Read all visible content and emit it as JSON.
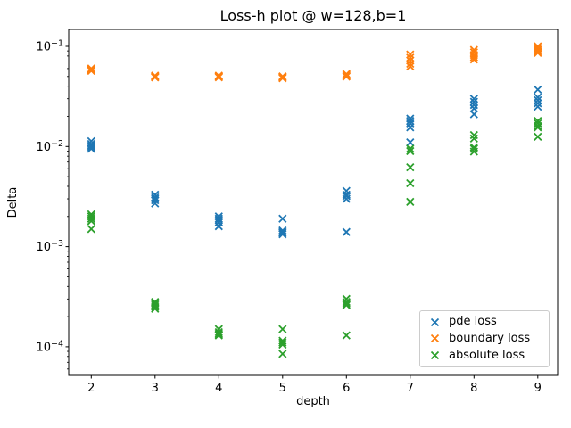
{
  "chart_data": {
    "type": "scatter",
    "title": "Loss-h plot @ w=128,b=1",
    "xlabel": "depth",
    "ylabel": "Delta",
    "x_scale": "linear",
    "y_scale": "log",
    "xlim": [
      1.65,
      9.3
    ],
    "ylim": [
      5.2e-05,
      0.148
    ],
    "grid": false,
    "marker": "x",
    "legend": {
      "position": "lower right"
    },
    "depths": [
      2,
      3,
      4,
      5,
      6,
      7,
      8,
      9
    ],
    "x_ticks": [
      "2",
      "3",
      "4",
      "5",
      "6",
      "7",
      "8",
      "9"
    ],
    "y_ticks": [
      {
        "base": "10",
        "exponent": "−1",
        "value": 0.1
      },
      {
        "base": "10",
        "exponent": "−2",
        "value": 0.01
      },
      {
        "base": "10",
        "exponent": "−3",
        "value": 0.001
      },
      {
        "base": "10",
        "exponent": "−4",
        "value": 0.0001
      }
    ],
    "series": [
      {
        "name": "pde loss",
        "color": "#1f77b4",
        "values_by_depth": [
          [
            0.0113,
            0.0106,
            0.0102,
            0.0099,
            0.0095
          ],
          [
            0.0033,
            0.0031,
            0.003,
            0.0029,
            0.0027
          ],
          [
            0.002,
            0.0019,
            0.00185,
            0.00175,
            0.0016
          ],
          [
            0.0019,
            0.00145,
            0.0014,
            0.00137,
            0.00133
          ],
          [
            0.0036,
            0.0033,
            0.0032,
            0.003,
            0.0014
          ],
          [
            0.019,
            0.018,
            0.017,
            0.0155,
            0.011
          ],
          [
            0.03,
            0.028,
            0.026,
            0.024,
            0.021
          ],
          [
            0.037,
            0.031,
            0.029,
            0.027,
            0.025
          ]
        ]
      },
      {
        "name": "boundary loss",
        "color": "#ff7f0e",
        "values_by_depth": [
          [
            0.06,
            0.059,
            0.058,
            0.057,
            0.057
          ],
          [
            0.051,
            0.05,
            0.05,
            0.049,
            0.049
          ],
          [
            0.051,
            0.05,
            0.05,
            0.05,
            0.049
          ],
          [
            0.05,
            0.05,
            0.049,
            0.049,
            0.048
          ],
          [
            0.053,
            0.052,
            0.051,
            0.05,
            0.05
          ],
          [
            0.083,
            0.077,
            0.072,
            0.067,
            0.063
          ],
          [
            0.092,
            0.087,
            0.082,
            0.078,
            0.074
          ],
          [
            0.1,
            0.096,
            0.092,
            0.089,
            0.086
          ]
        ]
      },
      {
        "name": "absolute loss",
        "color": "#2ca02c",
        "values_by_depth": [
          [
            0.0021,
            0.002,
            0.0019,
            0.0018,
            0.0015
          ],
          [
            0.00028,
            0.00027,
            0.00026,
            0.00025,
            0.00024
          ],
          [
            0.00015,
            0.00014,
            0.000135,
            0.000132,
            0.00013
          ],
          [
            0.00015,
            0.000115,
            0.00011,
            0.000105,
            8.5e-05
          ],
          [
            0.0003,
            0.00028,
            0.00027,
            0.00026,
            0.00013
          ],
          [
            0.0095,
            0.009,
            0.0062,
            0.0043,
            0.0028
          ],
          [
            0.013,
            0.012,
            0.0098,
            0.0095,
            0.0089
          ],
          [
            0.018,
            0.017,
            0.016,
            0.0155,
            0.0125
          ]
        ]
      }
    ]
  }
}
